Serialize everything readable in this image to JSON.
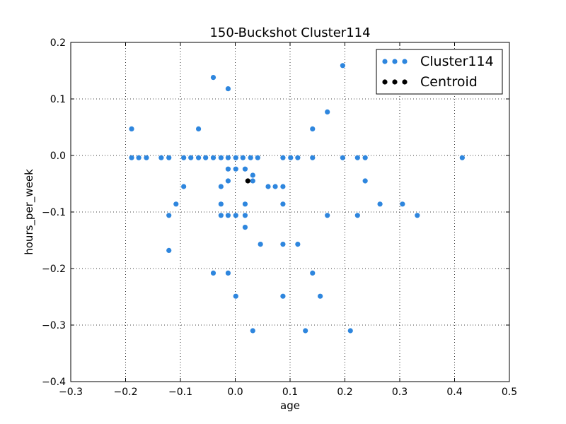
{
  "chart_data": {
    "type": "scatter",
    "title": "150-Buckshot Cluster114",
    "xlabel": "age",
    "ylabel": "hours_per_week",
    "xlim": [
      -0.3,
      0.5
    ],
    "ylim": [
      -0.4,
      0.2
    ],
    "xticks": [
      "−0.3",
      "−0.2",
      "−0.1",
      "0.0",
      "0.1",
      "0.2",
      "0.3",
      "0.4",
      "0.5"
    ],
    "yticks": [
      "0.2",
      "0.1",
      "0.0",
      "−0.1",
      "−0.2",
      "−0.3",
      "−0.4"
    ],
    "grid": true,
    "legend_position": "top-right",
    "series": [
      {
        "name": "Cluster114",
        "color": "#2e86de",
        "points": [
          [
            -0.189,
            0.047
          ],
          [
            -0.189,
            -0.004
          ],
          [
            -0.176,
            -0.004
          ],
          [
            -0.162,
            -0.004
          ],
          [
            -0.135,
            -0.004
          ],
          [
            -0.121,
            -0.004
          ],
          [
            -0.094,
            -0.004
          ],
          [
            -0.081,
            -0.004
          ],
          [
            -0.067,
            -0.004
          ],
          [
            -0.054,
            -0.004
          ],
          [
            -0.04,
            -0.004
          ],
          [
            -0.026,
            -0.004
          ],
          [
            -0.013,
            -0.004
          ],
          [
            0.001,
            -0.004
          ],
          [
            0.014,
            -0.004
          ],
          [
            0.028,
            -0.004
          ],
          [
            0.041,
            -0.004
          ],
          [
            0.087,
            -0.004
          ],
          [
            0.101,
            -0.004
          ],
          [
            0.114,
            -0.004
          ],
          [
            0.141,
            -0.004
          ],
          [
            0.196,
            -0.004
          ],
          [
            0.223,
            -0.004
          ],
          [
            0.237,
            -0.004
          ],
          [
            0.414,
            -0.004
          ],
          [
            -0.067,
            0.047
          ],
          [
            -0.04,
            0.138
          ],
          [
            -0.013,
            0.118
          ],
          [
            0.168,
            0.077
          ],
          [
            0.141,
            0.047
          ],
          [
            0.196,
            0.159
          ],
          [
            -0.013,
            -0.024
          ],
          [
            0.001,
            -0.024
          ],
          [
            0.018,
            -0.024
          ],
          [
            -0.013,
            -0.045
          ],
          [
            0.032,
            -0.035
          ],
          [
            0.032,
            -0.045
          ],
          [
            -0.094,
            -0.055
          ],
          [
            -0.026,
            -0.055
          ],
          [
            0.06,
            -0.055
          ],
          [
            0.073,
            -0.055
          ],
          [
            0.087,
            -0.055
          ],
          [
            0.237,
            -0.045
          ],
          [
            -0.108,
            -0.086
          ],
          [
            -0.026,
            -0.086
          ],
          [
            0.018,
            -0.086
          ],
          [
            0.087,
            -0.086
          ],
          [
            0.264,
            -0.086
          ],
          [
            0.305,
            -0.086
          ],
          [
            -0.121,
            -0.106
          ],
          [
            -0.026,
            -0.106
          ],
          [
            -0.013,
            -0.106
          ],
          [
            0.001,
            -0.106
          ],
          [
            0.018,
            -0.106
          ],
          [
            0.168,
            -0.106
          ],
          [
            0.223,
            -0.106
          ],
          [
            0.332,
            -0.106
          ],
          [
            0.018,
            -0.127
          ],
          [
            -0.121,
            -0.168
          ],
          [
            0.046,
            -0.157
          ],
          [
            0.087,
            -0.157
          ],
          [
            0.114,
            -0.157
          ],
          [
            -0.04,
            -0.208
          ],
          [
            -0.013,
            -0.208
          ],
          [
            0.141,
            -0.208
          ],
          [
            0.001,
            -0.249
          ],
          [
            0.087,
            -0.249
          ],
          [
            0.155,
            -0.249
          ],
          [
            0.032,
            -0.31
          ],
          [
            0.128,
            -0.31
          ],
          [
            0.21,
            -0.31
          ]
        ]
      },
      {
        "name": "Centroid",
        "color": "#000000",
        "points": [
          [
            0.023,
            -0.045
          ]
        ]
      }
    ]
  }
}
